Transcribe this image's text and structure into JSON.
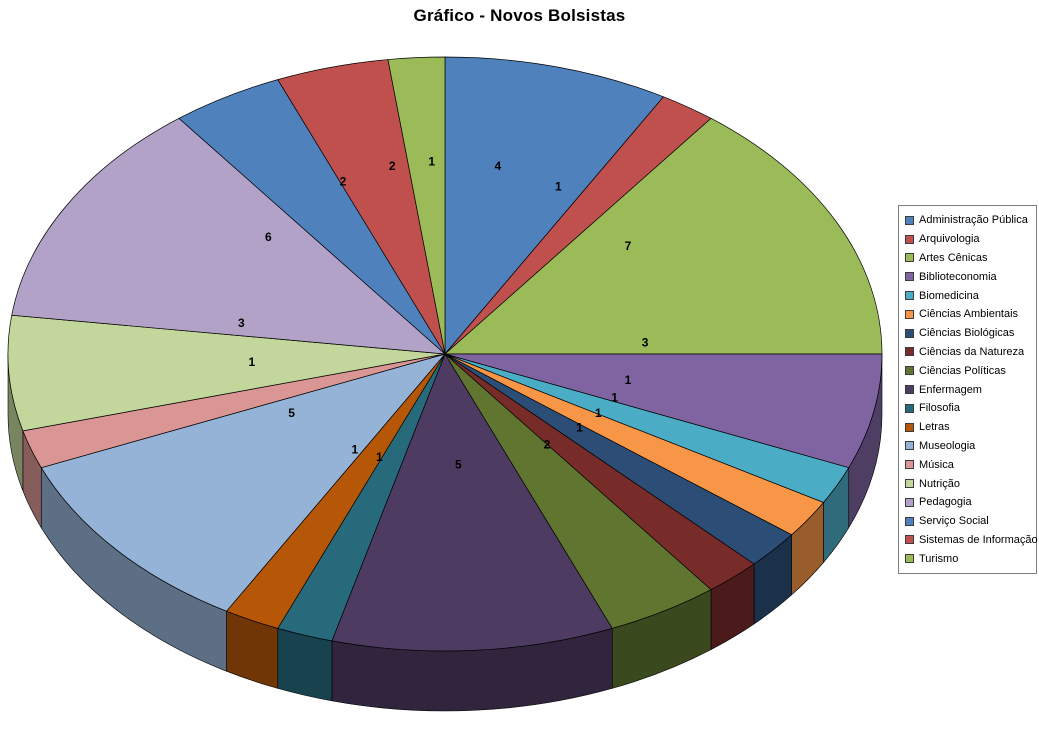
{
  "chart_data": {
    "type": "pie",
    "title": "Gráfico - Novos Bolsistas",
    "effect": "3d",
    "start_angle_deg": 0,
    "direction": "clockwise",
    "legend_position": "right",
    "data_labels": "value",
    "total": 48,
    "labels": [
      "Administração Pública",
      "Arquivologia",
      "Artes Cênicas",
      "Biblioteconomia",
      "Biomedicina",
      "Ciências Ambientais",
      "Ciências Biológicas",
      "Ciências da Natureza",
      "Ciências Políticas",
      "Enfermagem",
      "Filosofia",
      "Letras",
      "Museologia",
      "Música",
      "Nutrição",
      "Pedagogia",
      "Serviço Social",
      "Sistemas de Informação",
      "Turismo"
    ],
    "values": [
      4,
      1,
      7,
      3,
      1,
      1,
      1,
      1,
      2,
      5,
      1,
      1,
      5,
      1,
      3,
      6,
      2,
      2,
      1
    ],
    "colors": [
      "#4F81BD",
      "#C0504D",
      "#9BBB59",
      "#8064A2",
      "#4BACC6",
      "#F79646",
      "#2C4D75",
      "#772C2A",
      "#5F7530",
      "#4D3B62",
      "#276A7C",
      "#B65708",
      "#95B3D7",
      "#D99694",
      "#C3D69B",
      "#B2A2C7",
      "#4F81BD",
      "#C0504D",
      "#9BBB59"
    ]
  }
}
